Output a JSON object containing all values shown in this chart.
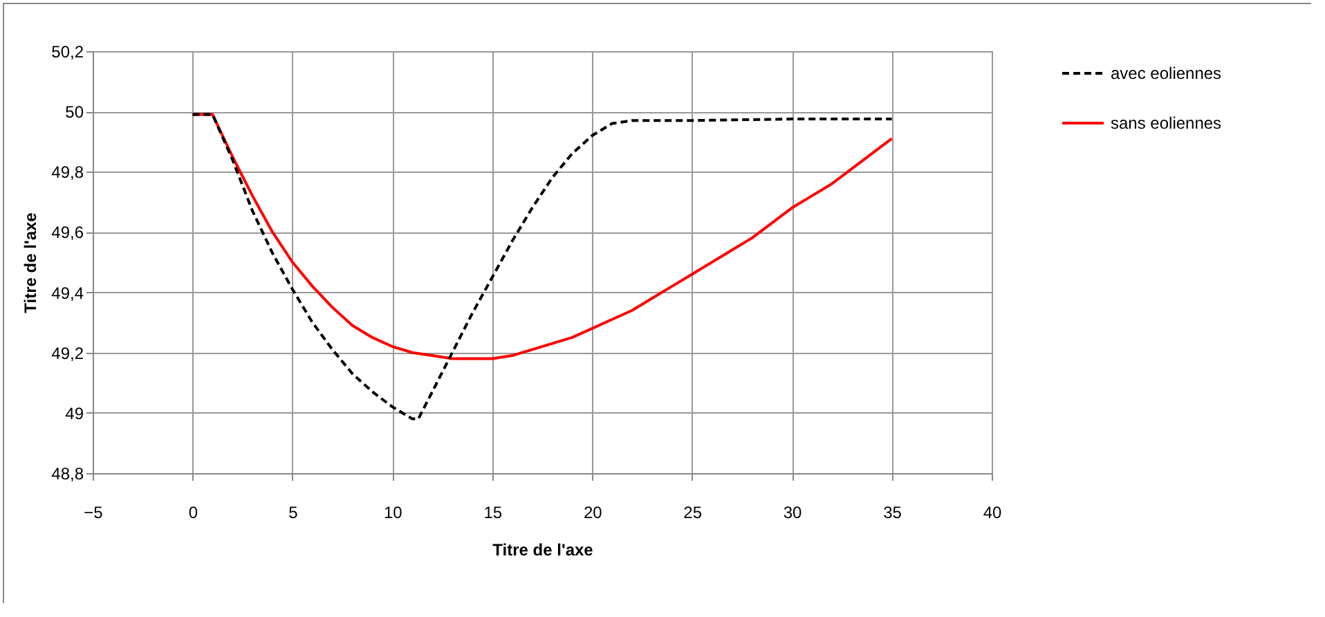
{
  "chart_data": {
    "type": "line",
    "xlabel": "Titre de l'axe",
    "ylabel": "Titre de l'axe",
    "xlim": [
      -5,
      40
    ],
    "xticks": [
      -5,
      0,
      5,
      10,
      15,
      20,
      25,
      30,
      35,
      40
    ],
    "ylim": [
      48.8,
      50.2
    ],
    "yticks": [
      {
        "value": 48.8,
        "label": "48,8"
      },
      {
        "value": 49,
        "label": "49"
      },
      {
        "value": 49.2,
        "label": "49,2"
      },
      {
        "value": 49.4,
        "label": "49,4"
      },
      {
        "value": 49.6,
        "label": "49,6"
      },
      {
        "value": 49.8,
        "label": "49,8"
      },
      {
        "value": 50,
        "label": "50"
      },
      {
        "value": 50.2,
        "label": "50,2"
      }
    ],
    "grid": true,
    "legend": "right",
    "series": [
      {
        "name": "avec eoliennes",
        "color": "#000000",
        "line_style": "dashed",
        "x": [
          0,
          1,
          2,
          3,
          4,
          5,
          6,
          7,
          8,
          9,
          10,
          11,
          11.3,
          12,
          13,
          14,
          15,
          16,
          17,
          18,
          19,
          20,
          21,
          22,
          25,
          30,
          35
        ],
        "values": [
          49.99,
          49.99,
          49.84,
          49.67,
          49.53,
          49.41,
          49.3,
          49.21,
          49.13,
          49.07,
          49.02,
          48.98,
          48.98,
          49.07,
          49.2,
          49.33,
          49.45,
          49.57,
          49.68,
          49.78,
          49.86,
          49.92,
          49.96,
          49.97,
          49.97,
          49.975,
          49.975
        ]
      },
      {
        "name": "sans eoliennes",
        "color": "#ff0000",
        "line_style": "solid",
        "x": [
          0,
          1,
          2,
          3,
          4,
          5,
          6,
          7,
          8,
          9,
          10,
          11,
          12,
          13,
          14,
          15,
          16,
          17,
          18,
          19,
          20,
          21,
          22,
          23,
          24,
          25,
          26,
          27,
          28,
          29,
          30,
          31,
          32,
          33,
          34,
          35
        ],
        "values": [
          49.99,
          49.99,
          49.85,
          49.72,
          49.6,
          49.5,
          49.42,
          49.35,
          49.29,
          49.25,
          49.22,
          49.2,
          49.19,
          49.18,
          49.18,
          49.18,
          49.19,
          49.21,
          49.23,
          49.25,
          49.28,
          49.31,
          49.34,
          49.38,
          49.42,
          49.46,
          49.5,
          49.54,
          49.58,
          49.63,
          49.68,
          49.72,
          49.76,
          49.81,
          49.86,
          49.91
        ]
      }
    ]
  }
}
